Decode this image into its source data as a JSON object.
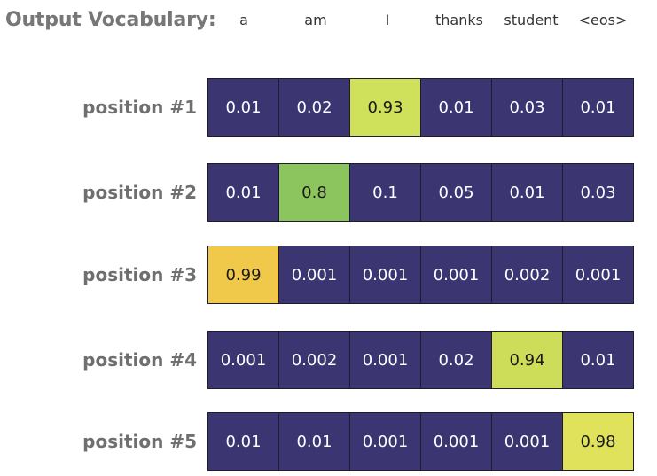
{
  "header": {
    "title": "Output Vocabulary:",
    "words": [
      "a",
      "am",
      "I",
      "thanks",
      "student",
      "<eos>"
    ]
  },
  "rows": [
    {
      "label": "position #1",
      "values": [
        "0.01",
        "0.02",
        "0.93",
        "0.01",
        "0.03",
        "0.01"
      ]
    },
    {
      "label": "position #2",
      "values": [
        "0.01",
        "0.8",
        "0.1",
        "0.05",
        "0.01",
        "0.03"
      ]
    },
    {
      "label": "position #3",
      "values": [
        "0.99",
        "0.001",
        "0.001",
        "0.001",
        "0.002",
        "0.001"
      ]
    },
    {
      "label": "position #4",
      "values": [
        "0.001",
        "0.002",
        "0.001",
        "0.02",
        "0.94",
        "0.01"
      ]
    },
    {
      "label": "position #5",
      "values": [
        "0.01",
        "0.01",
        "0.001",
        "0.001",
        "0.001",
        "0.98"
      ]
    }
  ],
  "colors": {
    "default_cell": "#3b3672",
    "highlight_row1": "#cfe05a",
    "highlight_row2": "#8cc55d",
    "highlight_row3": "#f0c94a",
    "highlight_row4": "#cddd5a",
    "highlight_row5": "#e0e25c"
  }
}
